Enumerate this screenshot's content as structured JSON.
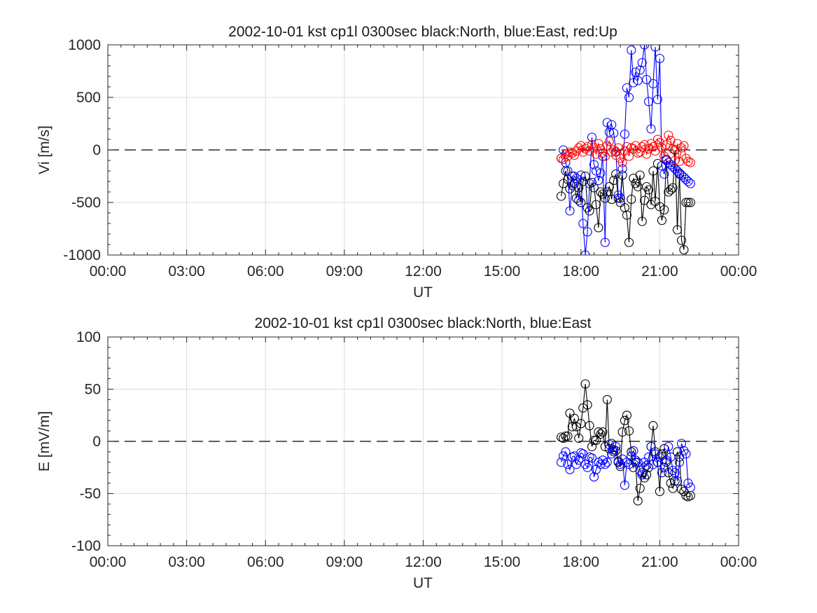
{
  "chart_data": [
    {
      "type": "line",
      "title": "2002-10-01 kst cp1l 0300sec black:North, blue:East, red:Up",
      "xlabel": "UT",
      "ylabel": "Vi [m/s]",
      "xlim": [
        "00:00",
        "00:00 (+1 day)"
      ],
      "xlim_hours": [
        0,
        24
      ],
      "ylim": [
        -1000,
        1000
      ],
      "xticks": [
        "00:00",
        "03:00",
        "06:00",
        "09:00",
        "12:00",
        "15:00",
        "18:00",
        "21:00",
        "00:00"
      ],
      "yticks": [
        "-1000",
        "-500",
        "0",
        "500",
        "1000"
      ],
      "grid": true,
      "zero_line": "dashed",
      "marker": "open circle",
      "series": [
        {
          "name": "North",
          "color": "#000000",
          "x": [
            17.25,
            17.33,
            17.42,
            17.5,
            17.58,
            17.67,
            17.75,
            17.83,
            17.92,
            18.0,
            18.08,
            18.17,
            18.25,
            18.33,
            18.42,
            18.5,
            18.58,
            18.67,
            18.75,
            18.83,
            18.92,
            19.0,
            19.08,
            19.17,
            19.25,
            19.33,
            19.42,
            19.5,
            19.58,
            19.67,
            19.75,
            19.83,
            19.92,
            20.0,
            20.08,
            20.17,
            20.25,
            20.33,
            20.42,
            20.5,
            20.58,
            20.67,
            20.75,
            20.83,
            20.92,
            21.0,
            21.08,
            21.17,
            21.25,
            21.33,
            21.42,
            21.5,
            21.58,
            21.67,
            21.75,
            21.83,
            21.92,
            22.0,
            22.08,
            22.17
          ],
          "y": [
            -440,
            -320,
            -200,
            -280,
            -370,
            -250,
            -320,
            -460,
            -360,
            -500,
            -300,
            -250,
            -550,
            -580,
            -310,
            -360,
            -520,
            -740,
            -400,
            -420,
            -460,
            -400,
            -350,
            -470,
            -290,
            -230,
            -460,
            -500,
            -240,
            -550,
            -620,
            -880,
            -470,
            -270,
            -320,
            -350,
            -240,
            -680,
            -480,
            -350,
            -380,
            -520,
            -200,
            -490,
            -130,
            -540,
            -670,
            -570,
            -90,
            -400,
            -380,
            -360,
            0,
            -760,
            -230,
            -860,
            -950,
            -500,
            -500,
            -500
          ]
        },
        {
          "name": "East",
          "color": "#0000ff",
          "x": [
            17.25,
            17.33,
            17.42,
            17.5,
            17.58,
            17.67,
            17.75,
            17.83,
            17.92,
            18.0,
            18.08,
            18.17,
            18.25,
            18.33,
            18.42,
            18.5,
            18.58,
            18.67,
            18.75,
            18.83,
            18.92,
            19.0,
            19.08,
            19.17,
            19.25,
            19.33,
            19.42,
            19.5,
            19.58,
            19.67,
            19.75,
            19.83,
            19.92,
            20.0,
            20.08,
            20.17,
            20.25,
            20.33,
            20.42,
            20.5,
            20.58,
            20.67,
            20.75,
            20.83,
            20.92,
            21.0,
            21.08,
            21.17,
            21.25,
            21.33,
            21.42,
            21.5,
            21.58,
            21.67,
            21.75,
            21.83,
            21.92,
            22.0,
            22.08,
            22.17
          ],
          "y": [
            -80,
            0,
            -120,
            -200,
            -580,
            -340,
            -250,
            -270,
            -480,
            -240,
            -700,
            -1000,
            -780,
            -320,
            120,
            -140,
            -200,
            -290,
            -220,
            -60,
            -880,
            260,
            170,
            240,
            160,
            -20,
            -430,
            -460,
            -180,
            150,
            590,
            500,
            950,
            640,
            740,
            660,
            760,
            830,
            1000,
            670,
            460,
            200,
            630,
            980,
            480,
            870,
            -150,
            -230,
            -100,
            -120,
            -140,
            -160,
            -180,
            -200,
            -220,
            -240,
            -260,
            -280,
            -300,
            -320
          ]
        },
        {
          "name": "Up",
          "color": "#ff0000",
          "x": [
            17.25,
            17.33,
            17.42,
            17.5,
            17.58,
            17.67,
            17.75,
            17.83,
            17.92,
            18.0,
            18.08,
            18.17,
            18.25,
            18.33,
            18.42,
            18.5,
            18.58,
            18.67,
            18.75,
            18.83,
            18.92,
            19.0,
            19.08,
            19.17,
            19.25,
            19.33,
            19.42,
            19.5,
            19.58,
            19.67,
            19.75,
            19.83,
            19.92,
            20.0,
            20.08,
            20.17,
            20.25,
            20.33,
            20.42,
            20.5,
            20.58,
            20.67,
            20.75,
            20.83,
            20.92,
            21.0,
            21.08,
            21.17,
            21.25,
            21.33,
            21.42,
            21.5,
            21.58,
            21.67,
            21.75,
            21.83,
            21.92,
            22.0,
            22.08,
            22.17
          ],
          "y": [
            -80,
            -90,
            -40,
            -60,
            -20,
            -30,
            -50,
            -10,
            20,
            40,
            -20,
            10,
            30,
            -10,
            50,
            20,
            -40,
            60,
            10,
            -30,
            -60,
            40,
            80,
            -20,
            0,
            -50,
            20,
            -80,
            -120,
            -10,
            30,
            -60,
            20,
            10,
            40,
            -30,
            -20,
            30,
            50,
            -40,
            10,
            60,
            30,
            -10,
            100,
            70,
            20,
            -60,
            50,
            140,
            90,
            10,
            -100,
            60,
            -110,
            20,
            40,
            -80,
            -110,
            -120
          ]
        }
      ]
    },
    {
      "type": "line",
      "title": "2002-10-01 kst cp1l 0300sec black:North, blue:East",
      "xlabel": "UT",
      "ylabel": "E [mV/m]",
      "xlim": [
        "00:00",
        "00:00 (+1 day)"
      ],
      "xlim_hours": [
        0,
        24
      ],
      "ylim": [
        -100,
        100
      ],
      "xticks": [
        "00:00",
        "03:00",
        "06:00",
        "09:00",
        "12:00",
        "15:00",
        "18:00",
        "21:00",
        "00:00"
      ],
      "yticks": [
        "-100",
        "-50",
        "0",
        "50",
        "100"
      ],
      "grid": true,
      "zero_line": "dashed",
      "marker": "open circle",
      "series": [
        {
          "name": "North",
          "color": "#000000",
          "x": [
            17.25,
            17.33,
            17.42,
            17.5,
            17.58,
            17.67,
            17.75,
            17.83,
            17.92,
            18.0,
            18.08,
            18.17,
            18.25,
            18.33,
            18.42,
            18.5,
            18.58,
            18.67,
            18.75,
            18.83,
            18.92,
            19.0,
            19.08,
            19.17,
            19.25,
            19.33,
            19.42,
            19.5,
            19.58,
            19.67,
            19.75,
            19.83,
            19.92,
            20.0,
            20.08,
            20.17,
            20.25,
            20.33,
            20.42,
            20.5,
            20.58,
            20.67,
            20.75,
            20.83,
            20.92,
            21.0,
            21.08,
            21.17,
            21.25,
            21.33,
            21.42,
            21.5,
            21.58,
            21.67,
            21.75,
            21.83,
            21.92,
            22.0,
            22.08,
            22.17
          ],
          "y": [
            4,
            3,
            5,
            5,
            27,
            14,
            22,
            14,
            3,
            17,
            32,
            55,
            35,
            15,
            -5,
            1,
            1,
            9,
            7,
            9,
            -5,
            40,
            -7,
            -2,
            -10,
            -9,
            -20,
            -24,
            9,
            20,
            25,
            10,
            -10,
            -25,
            -20,
            -57,
            -45,
            -30,
            -35,
            -32,
            -25,
            -5,
            15,
            -10,
            -20,
            -48,
            -12,
            -7,
            -20,
            -30,
            -40,
            -45,
            -38,
            -10,
            -15,
            -46,
            -48,
            -52,
            -53,
            -52
          ]
        },
        {
          "name": "East",
          "color": "#0000ff",
          "x": [
            17.25,
            17.33,
            17.42,
            17.5,
            17.58,
            17.67,
            17.75,
            17.83,
            17.92,
            18.0,
            18.08,
            18.17,
            18.25,
            18.33,
            18.42,
            18.5,
            18.58,
            18.67,
            18.75,
            18.83,
            18.92,
            19.0,
            19.08,
            19.17,
            19.25,
            19.33,
            19.42,
            19.5,
            19.58,
            19.67,
            19.75,
            19.83,
            19.92,
            20.0,
            20.08,
            20.17,
            20.25,
            20.33,
            20.42,
            20.5,
            20.58,
            20.67,
            20.75,
            20.83,
            20.92,
            21.0,
            21.08,
            21.17,
            21.25,
            21.33,
            21.42,
            21.5,
            21.58,
            21.67,
            21.75,
            21.83,
            21.92,
            22.0,
            22.08,
            22.17
          ],
          "y": [
            -20,
            -14,
            -10,
            -22,
            -27,
            -15,
            -14,
            -22,
            -18,
            -11,
            -12,
            -22,
            -25,
            -15,
            -16,
            -34,
            -27,
            -20,
            -22,
            -18,
            -22,
            -20,
            -3,
            -12,
            -8,
            -5,
            -19,
            -22,
            -17,
            -42,
            -20,
            -22,
            -14,
            -9,
            -18,
            -20,
            -28,
            -32,
            -20,
            -23,
            -15,
            -5,
            -22,
            -12,
            -20,
            -15,
            -30,
            -25,
            -18,
            -5,
            -15,
            -28,
            -30,
            -38,
            -20,
            -2,
            -9,
            -12,
            -40,
            -44
          ]
        }
      ]
    }
  ]
}
